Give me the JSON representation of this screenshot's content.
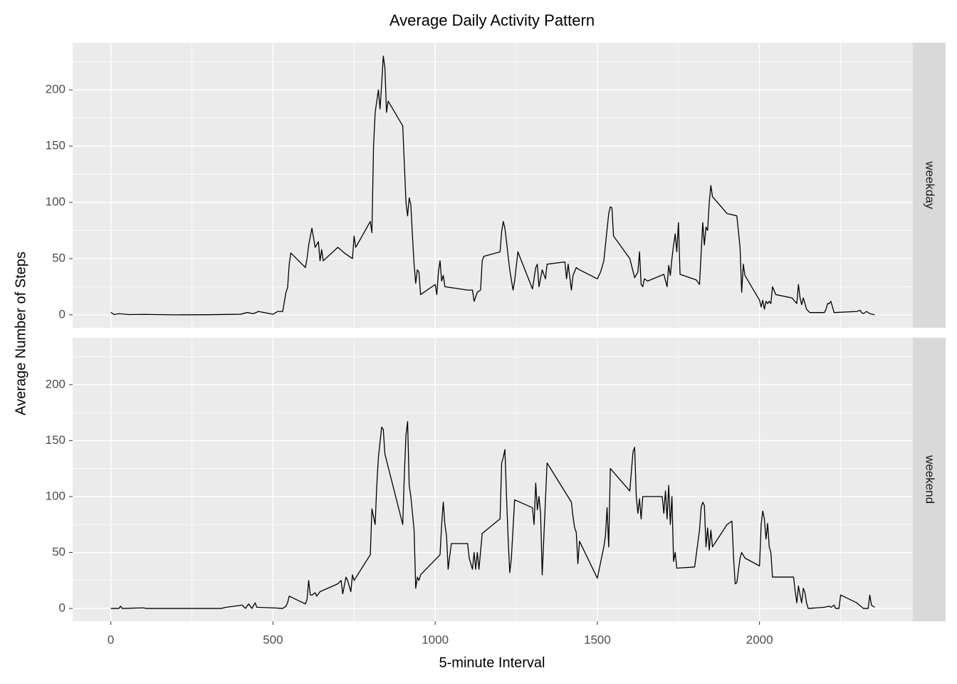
{
  "chart_data": {
    "type": "line",
    "title": "Average Daily Activity Pattern",
    "x_label": "5-minute Interval",
    "y_label": "Average Number of Steps",
    "xlim": [
      -117.75,
      2472.75
    ],
    "xticks": [
      0,
      500,
      1000,
      1500,
      2000
    ],
    "x_minor_gridlines": [
      250,
      750,
      1250,
      1750,
      2250
    ],
    "ylim": [
      -11.5,
      241.9
    ],
    "yticks": [
      0,
      50,
      100,
      150,
      200
    ],
    "y_minor_gridlines": [
      25,
      75,
      125,
      175,
      225
    ],
    "grid": true,
    "facets": "rows",
    "series": [
      {
        "name": "weekday",
        "color": "#000000",
        "x": [
          0,
          10,
          25,
          55,
          100,
          200,
          300,
          400,
          420,
          440,
          455,
          500,
          515,
          530,
          540,
          545,
          550,
          555,
          600,
          605,
          610,
          620,
          630,
          640,
          645,
          650,
          655,
          700,
          720,
          745,
          750,
          755,
          800,
          805,
          810,
          815,
          820,
          825,
          830,
          835,
          840,
          845,
          850,
          855,
          900,
          910,
          915,
          920,
          925,
          930,
          935,
          940,
          945,
          950,
          955,
          1000,
          1005,
          1010,
          1015,
          1020,
          1025,
          1030,
          1100,
          1115,
          1120,
          1130,
          1140,
          1145,
          1150,
          1200,
          1205,
          1210,
          1215,
          1220,
          1225,
          1230,
          1240,
          1245,
          1255,
          1300,
          1310,
          1315,
          1320,
          1330,
          1340,
          1345,
          1400,
          1405,
          1410,
          1420,
          1425,
          1435,
          1445,
          1500,
          1510,
          1520,
          1535,
          1540,
          1545,
          1550,
          1600,
          1615,
          1625,
          1630,
          1635,
          1640,
          1645,
          1655,
          1705,
          1715,
          1720,
          1725,
          1730,
          1735,
          1740,
          1745,
          1750,
          1755,
          1805,
          1815,
          1825,
          1830,
          1835,
          1840,
          1845,
          1850,
          1855,
          1900,
          1930,
          1940,
          1945,
          1950,
          1955,
          2000,
          2005,
          2010,
          2015,
          2020,
          2025,
          2030,
          2035,
          2040,
          2050,
          2100,
          2115,
          2120,
          2125,
          2130,
          2135,
          2145,
          2155,
          2200,
          2205,
          2210,
          2215,
          2220,
          2230,
          2300,
          2310,
          2315,
          2320,
          2330,
          2340,
          2355
        ],
        "values": [
          2.3,
          0.2,
          1,
          0.2,
          0.4,
          0,
          0.1,
          0.5,
          2,
          1,
          3,
          0.5,
          3,
          3,
          20,
          24,
          45,
          55,
          42,
          50,
          62,
          77,
          60,
          65,
          48,
          58,
          48,
          60,
          55,
          50,
          70,
          60,
          83,
          73,
          150,
          180,
          190,
          200,
          183,
          205,
          230,
          220,
          180,
          190,
          168,
          100,
          88,
          104,
          98,
          70,
          45,
          28,
          40,
          38,
          18,
          27,
          18,
          38,
          48,
          30,
          35,
          25,
          22,
          22,
          12,
          20,
          22,
          48,
          52,
          56,
          74,
          83,
          77,
          65,
          52,
          40,
          22,
          30,
          56,
          23,
          42,
          45,
          25,
          40,
          32,
          45,
          47,
          32,
          45,
          22,
          35,
          42,
          40,
          32,
          38,
          48,
          90,
          96,
          95,
          70,
          50,
          33,
          38,
          56,
          27,
          25,
          32,
          30,
          36,
          25,
          44,
          35,
          50,
          62,
          72,
          56,
          82,
          36,
          31,
          27,
          82,
          62,
          78,
          75,
          100,
          115,
          105,
          90,
          88,
          60,
          20,
          45,
          35,
          13,
          7,
          13,
          5,
          12,
          10,
          12,
          10,
          25,
          18,
          15,
          10,
          27,
          15,
          9,
          15,
          5,
          2,
          2,
          5,
          10,
          10,
          12,
          2,
          3,
          4,
          2,
          1,
          3,
          1,
          0
        ]
      },
      {
        "name": "weekend",
        "color": "#000000",
        "x": [
          0,
          25,
          30,
          35,
          100,
          110,
          200,
          300,
          340,
          355,
          405,
          415,
          425,
          435,
          445,
          450,
          500,
          530,
          540,
          545,
          550,
          600,
          605,
          610,
          615,
          620,
          630,
          635,
          645,
          700,
          710,
          715,
          725,
          730,
          740,
          745,
          750,
          800,
          805,
          815,
          820,
          825,
          835,
          840,
          845,
          900,
          905,
          910,
          915,
          920,
          925,
          935,
          940,
          945,
          950,
          955,
          1015,
          1020,
          1025,
          1030,
          1035,
          1040,
          1045,
          1050,
          1100,
          1105,
          1110,
          1115,
          1120,
          1125,
          1130,
          1135,
          1145,
          1200,
          1205,
          1210,
          1215,
          1220,
          1225,
          1230,
          1235,
          1245,
          1300,
          1305,
          1310,
          1315,
          1320,
          1325,
          1330,
          1345,
          1420,
          1425,
          1430,
          1435,
          1440,
          1445,
          1500,
          1520,
          1525,
          1530,
          1535,
          1540,
          1600,
          1610,
          1615,
          1620,
          1625,
          1630,
          1635,
          1640,
          1700,
          1705,
          1710,
          1715,
          1720,
          1725,
          1730,
          1735,
          1740,
          1745,
          1800,
          1815,
          1820,
          1825,
          1830,
          1835,
          1840,
          1845,
          1850,
          1855,
          1900,
          1915,
          1920,
          1925,
          1930,
          1940,
          1945,
          1955,
          2000,
          2005,
          2010,
          2015,
          2020,
          2025,
          2030,
          2035,
          2040,
          2100,
          2105,
          2110,
          2115,
          2120,
          2125,
          2130,
          2135,
          2140,
          2145,
          2150,
          2200,
          2215,
          2220,
          2230,
          2235,
          2245,
          2250,
          2300,
          2320,
          2335,
          2340,
          2345,
          2355
        ],
        "values": [
          0,
          0,
          2,
          0,
          0.5,
          0,
          0,
          0,
          0,
          1,
          3,
          0,
          4,
          0,
          5,
          1,
          0.5,
          0,
          2,
          5,
          11,
          4,
          8,
          25,
          12,
          12,
          14,
          11,
          15,
          22,
          25,
          13,
          28,
          25,
          15,
          30,
          25,
          48,
          89,
          75,
          110,
          135,
          162,
          160,
          138,
          75,
          120,
          155,
          167,
          110,
          100,
          70,
          18,
          28,
          25,
          30,
          48,
          75,
          95,
          75,
          65,
          35,
          47,
          58,
          58,
          45,
          40,
          35,
          50,
          35,
          50,
          35,
          67,
          80,
          130,
          135,
          142,
          100,
          62,
          32,
          45,
          97,
          90,
          75,
          112,
          88,
          100,
          85,
          30,
          130,
          95,
          82,
          72,
          68,
          40,
          60,
          27,
          55,
          65,
          90,
          55,
          125,
          105,
          140,
          144,
          100,
          85,
          98,
          80,
          100,
          100,
          85,
          105,
          80,
          110,
          75,
          100,
          42,
          50,
          36,
          37,
          70,
          90,
          95,
          92,
          55,
          72,
          52,
          70,
          55,
          75,
          78,
          45,
          22,
          23,
          45,
          50,
          45,
          38,
          75,
          87,
          80,
          62,
          76,
          55,
          50,
          28,
          28,
          28,
          15,
          5,
          20,
          12,
          5,
          18,
          14,
          5,
          0,
          1,
          2,
          1,
          3,
          0,
          0,
          12,
          5,
          0,
          0,
          12,
          3,
          1
        ]
      }
    ]
  }
}
